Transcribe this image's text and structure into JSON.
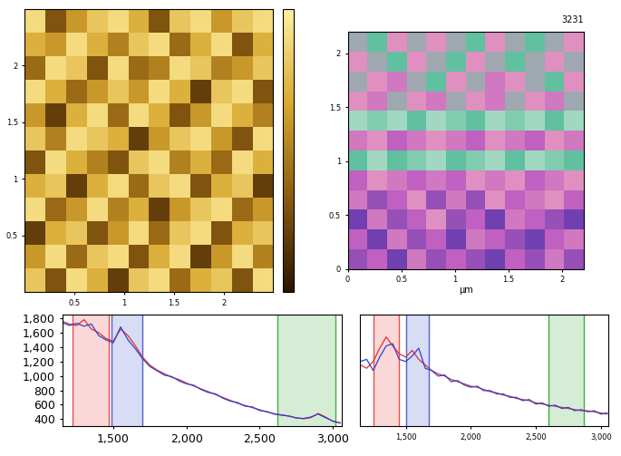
{
  "chart_data": [
    {
      "type": "heatmap",
      "xlim": [
        0,
        2.5
      ],
      "ylim": [
        0,
        2.5
      ],
      "xticks": [
        0.5,
        1,
        1.5,
        2
      ],
      "yticks": [
        0.5,
        1,
        1.5,
        2
      ],
      "color_range": [
        0,
        1
      ],
      "cells": [
        [
          0.8,
          0.3,
          0.9,
          0.7,
          0.2,
          0.8,
          0.9,
          0.4,
          0.7,
          0.8,
          0.3,
          0.9
        ],
        [
          0.6,
          0.9,
          0.4,
          0.8,
          0.9,
          0.3,
          0.7,
          0.9,
          0.2,
          0.6,
          0.9,
          0.5
        ],
        [
          0.2,
          0.7,
          0.8,
          0.3,
          0.6,
          0.9,
          0.4,
          0.8,
          0.9,
          0.3,
          0.7,
          0.8
        ],
        [
          0.9,
          0.4,
          0.6,
          0.9,
          0.5,
          0.7,
          0.2,
          0.6,
          0.8,
          0.9,
          0.4,
          0.6
        ],
        [
          0.7,
          0.8,
          0.2,
          0.7,
          0.9,
          0.4,
          0.8,
          0.9,
          0.3,
          0.7,
          0.8,
          0.2
        ],
        [
          0.3,
          0.9,
          0.7,
          0.5,
          0.3,
          0.8,
          0.9,
          0.5,
          0.7,
          0.4,
          0.9,
          0.7
        ],
        [
          0.8,
          0.5,
          0.9,
          0.8,
          0.7,
          0.2,
          0.6,
          0.8,
          0.9,
          0.6,
          0.3,
          0.9
        ],
        [
          0.6,
          0.2,
          0.7,
          0.9,
          0.4,
          0.9,
          0.7,
          0.3,
          0.6,
          0.9,
          0.7,
          0.5
        ],
        [
          0.9,
          0.7,
          0.4,
          0.6,
          0.8,
          0.6,
          0.9,
          0.7,
          0.2,
          0.8,
          0.9,
          0.3
        ],
        [
          0.4,
          0.9,
          0.8,
          0.3,
          0.9,
          0.4,
          0.5,
          0.9,
          0.8,
          0.5,
          0.6,
          0.8
        ],
        [
          0.7,
          0.6,
          0.9,
          0.7,
          0.5,
          0.8,
          0.9,
          0.4,
          0.7,
          0.9,
          0.3,
          0.7
        ],
        [
          0.9,
          0.3,
          0.6,
          0.8,
          0.9,
          0.7,
          0.3,
          0.8,
          0.9,
          0.6,
          0.8,
          0.9
        ]
      ]
    },
    {
      "type": "heatmap",
      "x_label": "µm",
      "annotation": "3231",
      "xlim": [
        0,
        2.2
      ],
      "ylim": [
        0,
        2.2
      ],
      "xticks": [
        0,
        0.5,
        1,
        1.5,
        2
      ],
      "yticks": [
        0,
        0.5,
        1,
        1.5,
        2
      ],
      "color_range": [
        0,
        1
      ],
      "cells": [
        [
          0.3,
          0.4,
          0.2,
          0.5,
          0.3,
          0.4,
          0.3,
          0.2,
          0.4,
          0.3,
          0.5,
          0.3
        ],
        [
          0.4,
          0.2,
          0.5,
          0.3,
          0.4,
          0.2,
          0.5,
          0.4,
          0.3,
          0.2,
          0.4,
          0.5
        ],
        [
          0.2,
          0.5,
          0.3,
          0.4,
          0.6,
          0.3,
          0.4,
          0.2,
          0.5,
          0.4,
          0.3,
          0.2
        ],
        [
          0.5,
          0.3,
          0.4,
          0.6,
          0.3,
          0.5,
          0.3,
          0.6,
          0.4,
          0.5,
          0.6,
          0.4
        ],
        [
          0.4,
          0.6,
          0.5,
          0.4,
          0.5,
          0.4,
          0.6,
          0.5,
          0.6,
          0.4,
          0.5,
          0.6
        ],
        [
          0.8,
          0.9,
          0.8,
          0.85,
          0.9,
          0.8,
          0.85,
          0.9,
          0.8,
          0.9,
          0.85,
          0.8
        ],
        [
          0.5,
          0.6,
          0.4,
          0.5,
          0.6,
          0.5,
          0.4,
          0.6,
          0.5,
          0.4,
          0.6,
          0.5
        ],
        [
          0.9,
          0.85,
          0.9,
          0.8,
          0.9,
          0.85,
          0.8,
          0.9,
          0.85,
          0.9,
          0.8,
          0.9
        ],
        [
          0.6,
          0.5,
          0.7,
          0.6,
          0.5,
          0.7,
          0.6,
          0.5,
          0.7,
          0.6,
          0.5,
          0.7
        ],
        [
          0.7,
          0.6,
          0.5,
          0.7,
          0.8,
          0.6,
          0.7,
          0.5,
          0.6,
          0.7,
          0.8,
          0.6
        ],
        [
          0.6,
          0.7,
          0.8,
          0.6,
          0.7,
          0.8,
          0.6,
          0.7,
          0.8,
          0.7,
          0.6,
          0.7
        ],
        [
          0.7,
          0.8,
          0.6,
          0.7,
          0.6,
          0.7,
          0.8,
          0.6,
          0.7,
          0.8,
          0.7,
          0.6
        ]
      ]
    },
    {
      "type": "line",
      "x": [
        1150,
        1200,
        1250,
        1300,
        1350,
        1400,
        1450,
        1500,
        1550,
        1600,
        1650,
        1700,
        1750,
        1800,
        1850,
        1900,
        1950,
        2000,
        2050,
        2100,
        2150,
        2200,
        2250,
        2300,
        2350,
        2400,
        2450,
        2500,
        2550,
        2600,
        2650,
        2700,
        2750,
        2800,
        2850,
        2900,
        2950,
        3000,
        3050
      ],
      "series": [
        {
          "color": "#e03030",
          "values": [
            1760,
            1720,
            1700,
            1780,
            1650,
            1600,
            1520,
            1480,
            1650,
            1560,
            1420,
            1260,
            1150,
            1080,
            1030,
            980,
            950,
            900,
            860,
            820,
            780,
            740,
            700,
            660,
            620,
            590,
            560,
            530,
            500,
            475,
            460,
            440,
            420,
            405,
            420,
            480,
            430,
            370,
            350
          ]
        },
        {
          "color": "#3040d0",
          "values": [
            1740,
            1700,
            1730,
            1690,
            1720,
            1560,
            1500,
            1460,
            1680,
            1500,
            1380,
            1240,
            1130,
            1070,
            1010,
            990,
            930,
            890,
            870,
            810,
            770,
            750,
            690,
            650,
            630,
            580,
            570,
            520,
            505,
            470,
            455,
            445,
            415,
            410,
            430,
            470,
            420,
            375,
            345
          ]
        }
      ],
      "regions": [
        {
          "color": "#e8504a",
          "range": [
            1220,
            1470
          ]
        },
        {
          "color": "#5060d0",
          "range": [
            1490,
            1700
          ]
        },
        {
          "color": "#40b040",
          "range": [
            2620,
            3020
          ]
        }
      ],
      "xlim": [
        1150,
        3060
      ],
      "ylim": [
        300,
        1850
      ],
      "xticks": [
        {
          "value": 1500,
          "label": "1,500"
        },
        {
          "value": 2000,
          "label": "2,000"
        },
        {
          "value": 2500,
          "label": "2,500"
        },
        {
          "value": 3000,
          "label": "3,000"
        }
      ],
      "yticks": [
        400,
        600,
        800,
        {
          "value": 1000,
          "label": "1,000"
        },
        {
          "value": 1200,
          "label": "1,200"
        },
        {
          "value": 1400,
          "label": "1,400"
        },
        {
          "value": 1600,
          "label": "1,600"
        },
        {
          "value": 1800,
          "label": "1,800"
        }
      ]
    },
    {
      "type": "line",
      "tick_labels": "x",
      "x": [
        1150,
        1200,
        1250,
        1300,
        1350,
        1400,
        1450,
        1500,
        1550,
        1600,
        1650,
        1700,
        1750,
        1800,
        1850,
        1900,
        1950,
        2000,
        2050,
        2100,
        2150,
        2200,
        2250,
        2300,
        2350,
        2400,
        2450,
        2500,
        2550,
        2600,
        2650,
        2700,
        2750,
        2800,
        2850,
        2900,
        2950,
        3000,
        3050
      ],
      "series": [
        {
          "color": "#e03030",
          "values": [
            55,
            52,
            58,
            70,
            80,
            72,
            65,
            62,
            68,
            60,
            55,
            50,
            47,
            45,
            42,
            40,
            38,
            36,
            35,
            33,
            31,
            30,
            28,
            27,
            25,
            24,
            23,
            21,
            20,
            19,
            18,
            17,
            16,
            15,
            14,
            14,
            13,
            12,
            11
          ]
        },
        {
          "color": "#3040d0",
          "values": [
            58,
            60,
            50,
            62,
            72,
            74,
            60,
            58,
            63,
            70,
            52,
            50,
            45,
            46,
            40,
            41,
            37,
            35,
            36,
            32,
            32,
            29,
            29,
            26,
            26,
            23,
            24,
            20,
            21,
            18,
            19,
            16,
            17,
            14,
            15,
            13,
            14,
            11,
            12
          ]
        }
      ],
      "regions": [
        {
          "color": "#e8504a",
          "range": [
            1250,
            1450
          ]
        },
        {
          "color": "#5060d0",
          "range": [
            1500,
            1680
          ]
        },
        {
          "color": "#40b040",
          "range": [
            2600,
            2870
          ]
        }
      ],
      "xlim": [
        1150,
        3060
      ],
      "ylim": [
        0,
        100
      ],
      "xticks": [
        {
          "value": 1500,
          "label": "1,500"
        },
        {
          "value": 2000,
          "label": "2,000"
        },
        {
          "value": 2500,
          "label": "2,500"
        },
        {
          "value": 3000,
          "label": "3,000"
        }
      ]
    }
  ]
}
